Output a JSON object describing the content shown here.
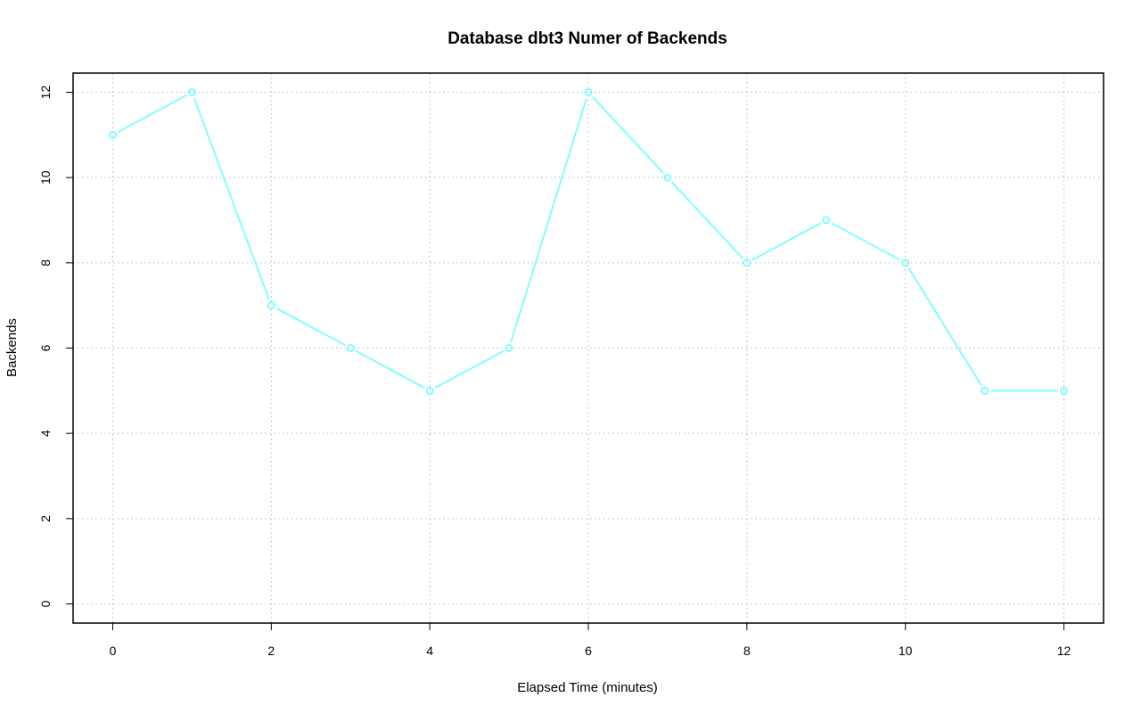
{
  "chart_data": {
    "type": "line",
    "title": "Database dbt3 Numer of Backends",
    "xlabel": "Elapsed Time (minutes)",
    "ylabel": "Backends",
    "x": [
      0,
      1,
      2,
      3,
      4,
      5,
      6,
      7,
      8,
      9,
      10,
      11,
      12
    ],
    "series": [
      {
        "values": [
          11,
          12,
          7,
          6,
          5,
          6,
          12,
          10,
          8,
          9,
          8,
          5,
          5
        ],
        "color": "#66ffff",
        "marker": "open-circle"
      }
    ],
    "xticks": [
      "0",
      "2",
      "4",
      "6",
      "8",
      "10",
      "12"
    ],
    "yticks": [
      "0",
      "2",
      "4",
      "6",
      "8",
      "10",
      "12"
    ],
    "xlim": [
      -0.5,
      12.5
    ],
    "ylim": [
      -0.45,
      12.45
    ],
    "grid": true,
    "colors": {
      "line": "#66ffff",
      "grid": "#b8b8b8",
      "frame": "#000000"
    }
  }
}
